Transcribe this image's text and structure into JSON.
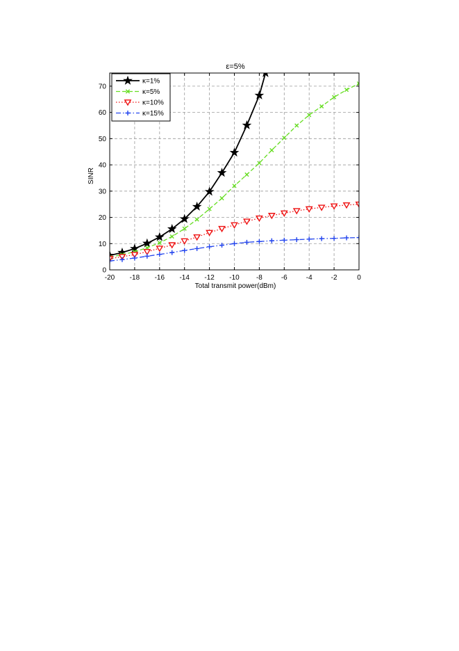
{
  "chart_data": {
    "type": "line",
    "title": "ε=5%",
    "xlabel": "Total transmit power(dBm)",
    "ylabel": "SINR",
    "xlim": [
      -20,
      0
    ],
    "ylim": [
      0,
      75
    ],
    "xticks": [
      -20,
      -18,
      -16,
      -14,
      -12,
      -10,
      -8,
      -6,
      -4,
      -2,
      0
    ],
    "yticks": [
      0,
      10,
      20,
      30,
      40,
      50,
      60,
      70
    ],
    "grid": true,
    "legend_position": "top-left",
    "series": [
      {
        "name": "κ=1%",
        "color": "#000000",
        "line": "solid",
        "marker": "star",
        "x": [
          -20,
          -19,
          -18,
          -17,
          -16,
          -15,
          -14,
          -13,
          -12,
          -11,
          -10,
          -9,
          -8,
          -7.5
        ],
        "y": [
          5.5,
          6.6,
          8.1,
          10.1,
          12.5,
          15.6,
          19.4,
          24.1,
          29.8,
          37.0,
          44.7,
          55.1,
          66.5,
          75
        ]
      },
      {
        "name": "κ=5%",
        "color": "#66dd22",
        "line": "dashed",
        "marker": "x",
        "x": [
          -20,
          -19,
          -18,
          -17,
          -16,
          -15,
          -14,
          -13,
          -12,
          -11,
          -10,
          -9,
          -8,
          -7,
          -6,
          -5,
          -4,
          -3,
          -2,
          -1,
          0
        ],
        "y": [
          4.8,
          5.8,
          6.9,
          8.4,
          10.3,
          12.7,
          15.7,
          19.2,
          23.2,
          27.3,
          32.0,
          36.3,
          40.7,
          45.6,
          50.3,
          55.0,
          59.0,
          62.3,
          65.8,
          68.6,
          71.0
        ]
      },
      {
        "name": "κ=10%",
        "color": "#ee1111",
        "line": "dotted",
        "marker": "triangle-down",
        "x": [
          -20,
          -19,
          -18,
          -17,
          -16,
          -15,
          -14,
          -13,
          -12,
          -11,
          -10,
          -9,
          -8,
          -7,
          -6,
          -5,
          -4,
          -3,
          -2,
          -1,
          0
        ],
        "y": [
          4.3,
          5.0,
          5.8,
          6.9,
          8.2,
          9.5,
          11.0,
          12.5,
          14.2,
          15.7,
          17.1,
          18.5,
          19.7,
          20.7,
          21.6,
          22.5,
          23.2,
          23.8,
          24.3,
          24.7,
          25.0
        ]
      },
      {
        "name": "κ=15%",
        "color": "#2244ee",
        "line": "dashdot",
        "marker": "plus",
        "x": [
          -20,
          -19,
          -18,
          -17,
          -16,
          -15,
          -14,
          -13,
          -12,
          -11,
          -10,
          -9,
          -8,
          -7,
          -6,
          -5,
          -4,
          -3,
          -2,
          -1,
          0
        ],
        "y": [
          3.4,
          3.9,
          4.5,
          5.2,
          5.9,
          6.6,
          7.4,
          8.1,
          8.8,
          9.4,
          10.0,
          10.5,
          10.8,
          11.1,
          11.3,
          11.5,
          11.7,
          11.9,
          12.0,
          12.2,
          12.3
        ]
      }
    ]
  }
}
